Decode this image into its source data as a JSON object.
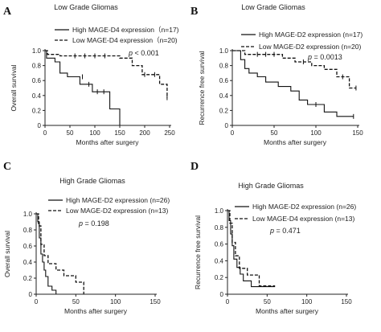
{
  "chart_data": [
    {
      "type": "line",
      "panel": "A",
      "title": "Low Grade Gliomas",
      "xlabel": "Months after surgery",
      "ylabel": "Overall survival",
      "xlim": [
        0,
        250
      ],
      "ylim": [
        0,
        1.0
      ],
      "xticks": [
        "0",
        "50",
        "100",
        "150",
        "200",
        "250"
      ],
      "yticks": [
        "0",
        "0.2",
        "0.4",
        "0.6",
        "0.8",
        "1.0"
      ],
      "p_value": "p < 0.001",
      "series": [
        {
          "name": "High MAGE-D4 expression（n=17)",
          "style": "solid",
          "x": [
            0,
            3,
            3,
            20,
            20,
            30,
            30,
            45,
            45,
            70,
            70,
            95,
            95,
            130,
            130,
            150,
            150
          ],
          "y": [
            1.0,
            1.0,
            0.9,
            0.9,
            0.85,
            0.85,
            0.7,
            0.7,
            0.65,
            0.65,
            0.55,
            0.55,
            0.45,
            0.45,
            0.22,
            0.22,
            0.0
          ],
          "censored": [
            [
              75,
              0.65
            ],
            [
              88,
              0.55
            ],
            [
              105,
              0.45
            ],
            [
              118,
              0.45
            ]
          ]
        },
        {
          "name": "Low MAGE-D4 expression（n=20)",
          "style": "dashed",
          "x": [
            0,
            5,
            5,
            30,
            30,
            150,
            150,
            175,
            175,
            195,
            195,
            230,
            230,
            245,
            245
          ],
          "y": [
            1.0,
            1.0,
            0.95,
            0.95,
            0.93,
            0.93,
            0.9,
            0.9,
            0.8,
            0.8,
            0.68,
            0.68,
            0.55,
            0.55,
            0.37
          ],
          "censored": [
            [
              60,
              0.93
            ],
            [
              80,
              0.93
            ],
            [
              100,
              0.93
            ],
            [
              120,
              0.93
            ],
            [
              200,
              0.68
            ],
            [
              220,
              0.68
            ],
            [
              245,
              0.37
            ]
          ]
        }
      ]
    },
    {
      "type": "line",
      "panel": "B",
      "title": "Low Grade Gliomas",
      "xlabel": "Months after surgery",
      "ylabel": "Recurrence free survival",
      "xlim": [
        0,
        150
      ],
      "ylim": [
        0,
        1.0
      ],
      "xticks": [
        "0",
        "50",
        "100",
        "150"
      ],
      "yticks": [
        "0",
        "0.2",
        "0.4",
        "0.6",
        "0.8",
        "1.0"
      ],
      "p_value": "p = 0.0013",
      "series": [
        {
          "name": "High MAGE-D2 expression (n=17)",
          "style": "solid",
          "x": [
            0,
            10,
            10,
            15,
            15,
            20,
            20,
            30,
            30,
            40,
            40,
            55,
            55,
            70,
            70,
            80,
            80,
            90,
            90,
            110,
            110,
            125,
            125,
            145
          ],
          "y": [
            1.0,
            1.0,
            0.88,
            0.88,
            0.76,
            0.76,
            0.7,
            0.7,
            0.65,
            0.65,
            0.58,
            0.58,
            0.52,
            0.52,
            0.46,
            0.46,
            0.34,
            0.34,
            0.28,
            0.28,
            0.18,
            0.18,
            0.12,
            0.12
          ],
          "censored": [
            [
              100,
              0.28
            ],
            [
              145,
              0.12
            ]
          ]
        },
        {
          "name": "Low MAGE-D2 expression (n=20)",
          "style": "dashed",
          "x": [
            0,
            15,
            15,
            60,
            60,
            75,
            75,
            95,
            95,
            110,
            110,
            125,
            125,
            140,
            140,
            148
          ],
          "y": [
            1.0,
            1.0,
            0.95,
            0.95,
            0.9,
            0.9,
            0.85,
            0.85,
            0.8,
            0.8,
            0.75,
            0.75,
            0.65,
            0.65,
            0.5,
            0.5
          ],
          "censored": [
            [
              30,
              0.95
            ],
            [
              40,
              0.95
            ],
            [
              50,
              0.95
            ],
            [
              85,
              0.85
            ],
            [
              132,
              0.65
            ],
            [
              148,
              0.5
            ]
          ]
        }
      ]
    },
    {
      "type": "line",
      "panel": "C",
      "title": "High Grade Gliomas",
      "xlabel": "Months after surgery",
      "ylabel": "Overall survival",
      "xlim": [
        0,
        150
      ],
      "ylim": [
        0,
        1.0
      ],
      "xticks": [
        "0",
        "50",
        "100",
        "150"
      ],
      "yticks": [
        "0",
        "0.2",
        "0.4",
        "0.6",
        "0.8",
        "1.0"
      ],
      "p_value": "p = 0.198",
      "series": [
        {
          "name": "High MAGE-D2 expression (n=26)",
          "style": "solid",
          "x": [
            0,
            2,
            2,
            4,
            4,
            6,
            6,
            8,
            8,
            10,
            10,
            12,
            12,
            15,
            15,
            20,
            20,
            25,
            25
          ],
          "y": [
            1.0,
            1.0,
            0.9,
            0.9,
            0.7,
            0.7,
            0.5,
            0.5,
            0.4,
            0.4,
            0.3,
            0.3,
            0.22,
            0.22,
            0.1,
            0.1,
            0.05,
            0.05,
            0.0
          ]
        },
        {
          "name": "Low MAGE-D2 expression (n=13)",
          "style": "dashed",
          "x": [
            0,
            3,
            3,
            6,
            6,
            10,
            10,
            15,
            15,
            25,
            25,
            35,
            35,
            50,
            50,
            60,
            60
          ],
          "y": [
            1.0,
            1.0,
            0.85,
            0.85,
            0.62,
            0.62,
            0.48,
            0.48,
            0.38,
            0.38,
            0.3,
            0.3,
            0.23,
            0.23,
            0.15,
            0.15,
            0.0
          ]
        }
      ]
    },
    {
      "type": "line",
      "panel": "D",
      "title": "High Grade Gliomas",
      "xlabel": "Months after surgery",
      "ylabel": "Recurrence free survival",
      "xlim": [
        0,
        150
      ],
      "ylim": [
        0,
        1.0
      ],
      "xticks": [
        "0",
        "50",
        "100",
        "150"
      ],
      "yticks": [
        "0",
        "0.2",
        "0.4",
        "0.6",
        "0.8",
        "1.0"
      ],
      "p_value": "p = 0.471",
      "series": [
        {
          "name": "High MAGE-D2 expression (n=26)",
          "style": "solid",
          "x": [
            0,
            2,
            2,
            4,
            4,
            6,
            6,
            8,
            8,
            12,
            12,
            16,
            16,
            20,
            20,
            30,
            30,
            40,
            40,
            60
          ],
          "y": [
            1.0,
            1.0,
            0.88,
            0.88,
            0.72,
            0.72,
            0.58,
            0.58,
            0.42,
            0.42,
            0.32,
            0.32,
            0.24,
            0.24,
            0.16,
            0.16,
            0.09,
            0.09,
            0.09,
            0.09
          ]
        },
        {
          "name": "Low MAGE-D4 expression (n=13)",
          "style": "dashed",
          "x": [
            0,
            3,
            3,
            6,
            6,
            10,
            10,
            15,
            15,
            25,
            25,
            40,
            40,
            60
          ],
          "y": [
            1.0,
            1.0,
            0.85,
            0.85,
            0.62,
            0.62,
            0.46,
            0.46,
            0.31,
            0.31,
            0.23,
            0.23,
            0.1,
            0.1
          ]
        }
      ]
    }
  ]
}
